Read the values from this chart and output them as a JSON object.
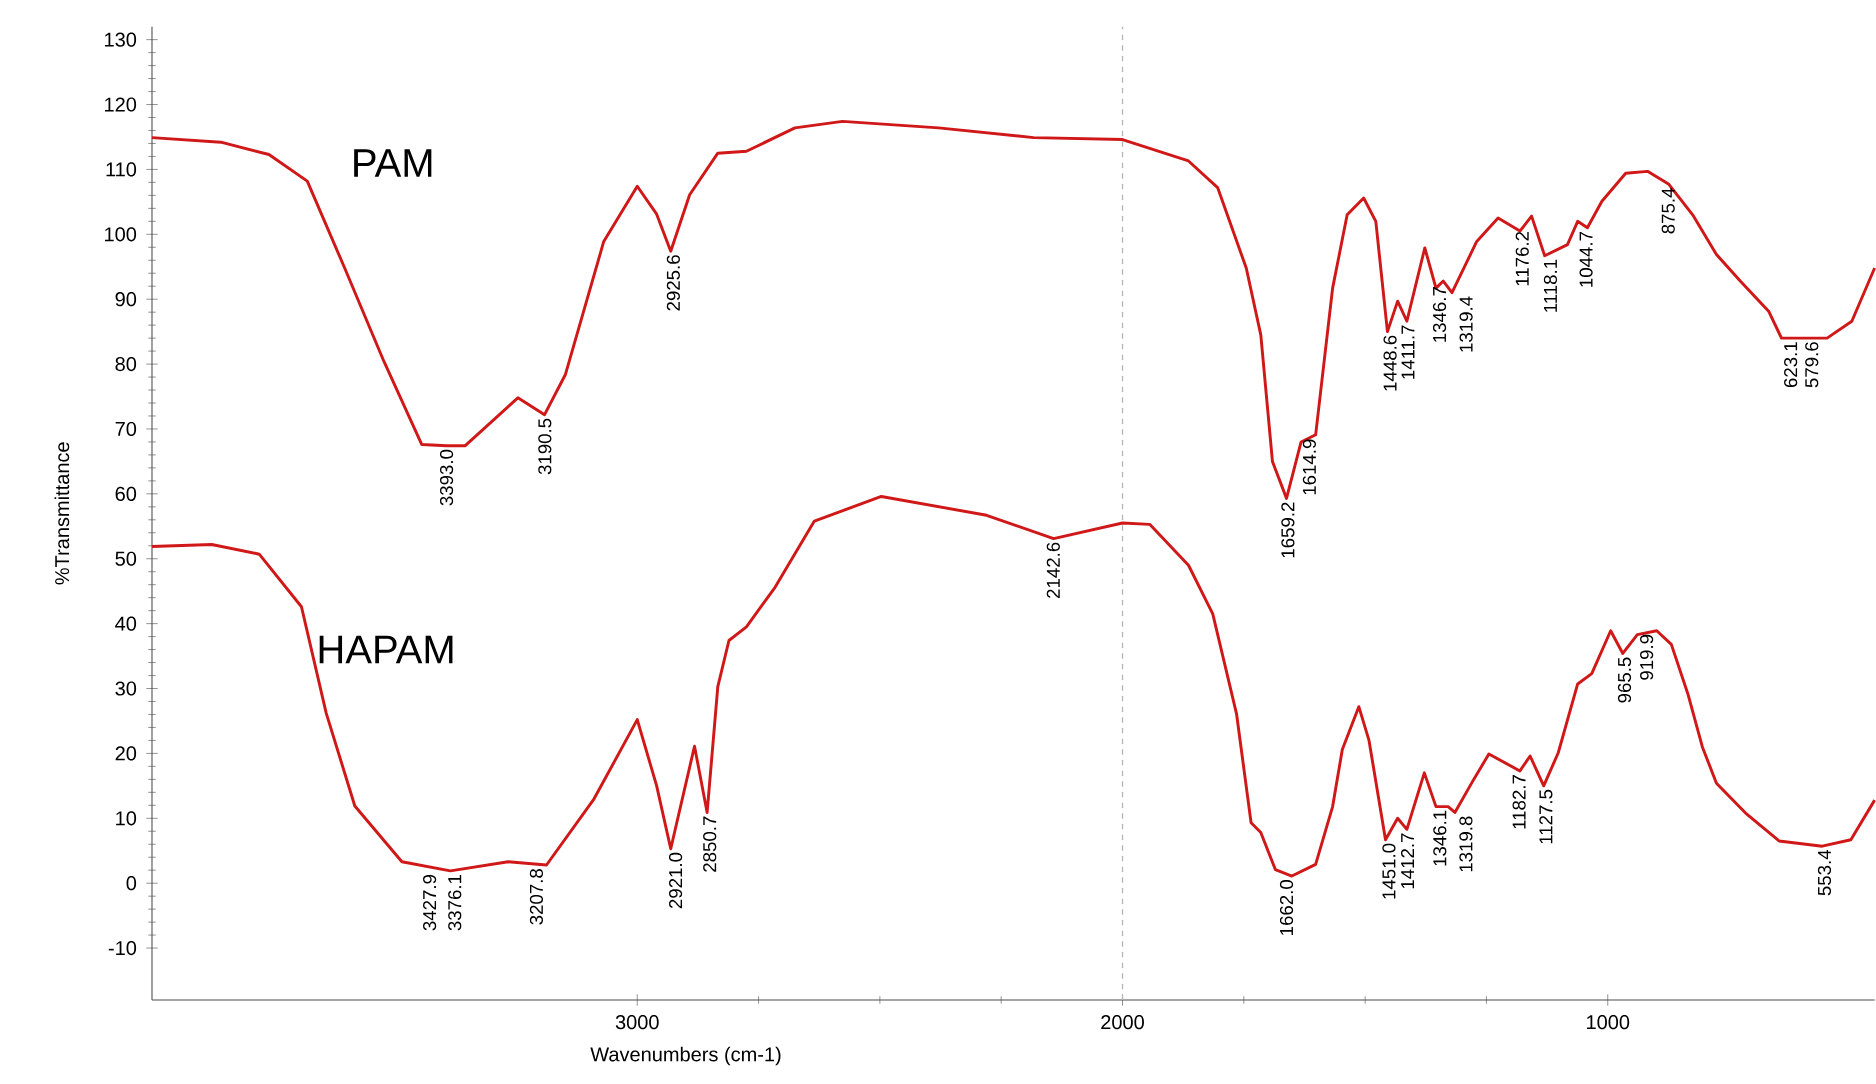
{
  "chart_data": {
    "type": "line",
    "xlabel": "Wavenumbers (cm-1)",
    "ylabel": "%Transmittance",
    "xlim": [
      4000,
      450
    ],
    "ylim": [
      -18,
      132
    ],
    "xticks": [
      3000,
      2000,
      1000
    ],
    "yticks": [
      -10,
      0,
      10,
      20,
      30,
      40,
      50,
      60,
      70,
      80,
      90,
      100,
      110,
      120,
      130
    ],
    "series": [
      {
        "name": "PAM",
        "color": "#d01818",
        "x": [
          4000,
          3858,
          3759,
          3680,
          3603,
          3522,
          3444,
          3393,
          3355,
          3246,
          3191,
          3148,
          3069,
          3000,
          2960,
          2931,
          2892,
          2834,
          2775,
          2675,
          2577,
          2379,
          2183,
          2000,
          1864,
          1804,
          1745,
          1715,
          1691,
          1662,
          1632,
          1602,
          1567,
          1537,
          1503,
          1478,
          1454,
          1433,
          1414,
          1377,
          1354,
          1339,
          1321,
          1270,
          1226,
          1181,
          1157,
          1130,
          1083,
          1062,
          1042,
          1012,
          963,
          918,
          874,
          825,
          776,
          727,
          668,
          642,
          548,
          497,
          450
        ],
        "values": [
          114.9,
          114.2,
          112.3,
          108.2,
          94.8,
          80.4,
          67.6,
          67.4,
          67.4,
          74.8,
          72.2,
          78.4,
          98.9,
          107.4,
          103.1,
          97.4,
          106.1,
          112.5,
          112.8,
          116.4,
          117.4,
          116.4,
          114.9,
          114.6,
          111.3,
          107.2,
          94.8,
          84.5,
          65,
          59.3,
          68,
          69.1,
          91.7,
          103,
          105.6,
          102,
          85,
          89.7,
          86.6,
          97.9,
          91.7,
          92.8,
          91,
          98.9,
          102.5,
          100.5,
          102.8,
          96.7,
          98.4,
          102,
          101,
          105.1,
          109.4,
          109.7,
          107.7,
          103,
          96.9,
          92.8,
          88.1,
          84,
          84,
          86.6,
          94.8
        ]
      },
      {
        "name": "HAPAM",
        "color": "#d01818",
        "x": [
          4000,
          3877,
          3779,
          3692,
          3641,
          3582,
          3485,
          3385,
          3266,
          3187,
          3089,
          3000,
          2960,
          2931,
          2882,
          2856,
          2834,
          2811,
          2775,
          2716,
          2635,
          2497,
          2280,
          2142,
          2000,
          1944,
          1864,
          1814,
          1765,
          1735,
          1715,
          1685,
          1651,
          1602,
          1567,
          1547,
          1513,
          1492,
          1458,
          1433,
          1414,
          1378,
          1354,
          1329,
          1315,
          1280,
          1245,
          1181,
          1160,
          1132,
          1102,
          1062,
          1033,
          994,
          969,
          939,
          899,
          869,
          835,
          805,
          776,
          716,
          647,
          558,
          499,
          450
        ],
        "values": [
          51.9,
          52.2,
          50.7,
          42.6,
          26.2,
          11.9,
          3.3,
          1.9,
          3.3,
          2.8,
          13,
          25.2,
          15,
          5.3,
          21.1,
          10.9,
          30.3,
          37.4,
          39.5,
          45.6,
          55.8,
          59.6,
          56.7,
          53.1,
          55.5,
          55.3,
          49,
          41.5,
          26.1,
          9.3,
          7.8,
          2.1,
          1.1,
          2.9,
          11.8,
          20.6,
          27.2,
          22,
          6.7,
          10,
          8.3,
          17,
          11.8,
          11.8,
          10.9,
          15.5,
          19.9,
          17.3,
          19.6,
          15,
          20.1,
          30.7,
          32.3,
          38.9,
          35.4,
          38.3,
          38.9,
          36.8,
          29.2,
          21,
          15.4,
          10.8,
          6.5,
          5.7,
          6.7,
          12.8
        ]
      }
    ],
    "ref_lines": [
      {
        "axis": "x",
        "value": 2000,
        "color": "#b4b4b4",
        "line_style": "dashed"
      }
    ],
    "annotations": [
      {
        "text": "3393.0",
        "x": 3393,
        "y": 67.4
      },
      {
        "text": "3190.5",
        "x": 3190.5,
        "y": 72.2
      },
      {
        "text": "2925.6",
        "x": 2925.6,
        "y": 97.4
      },
      {
        "text": "1659.2",
        "x": 1659.2,
        "y": 59.3
      },
      {
        "text": "1614.9",
        "x": 1614.9,
        "y": 69
      },
      {
        "text": "1448.6",
        "x": 1448.6,
        "y": 85
      },
      {
        "text": "1411.7",
        "x": 1411.7,
        "y": 86.6
      },
      {
        "text": "1346.7",
        "x": 1346.7,
        "y": 92.5
      },
      {
        "text": "1319.4",
        "x": 1319.4,
        "y": 91
      },
      {
        "text": "1176.2",
        "x": 1176.2,
        "y": 101
      },
      {
        "text": "1118.1",
        "x": 1118.1,
        "y": 96.7
      },
      {
        "text": "1044.7",
        "x": 1044.7,
        "y": 101
      },
      {
        "text": "875.4",
        "x": 875.4,
        "y": 107.7
      },
      {
        "text": "623.1",
        "x": 623.1,
        "y": 84
      },
      {
        "text": "579.6",
        "x": 579.6,
        "y": 84
      },
      {
        "text": "3427.9",
        "x": 3427.9,
        "y": 1.9
      },
      {
        "text": "3376.1",
        "x": 3376.1,
        "y": 1.9
      },
      {
        "text": "3207.8",
        "x": 3207.8,
        "y": 2.8
      },
      {
        "text": "2921.0",
        "x": 2921,
        "y": 5.3
      },
      {
        "text": "2850.7",
        "x": 2850.7,
        "y": 10.9
      },
      {
        "text": "2142.6",
        "x": 2142.6,
        "y": 53.1
      },
      {
        "text": "1662.0",
        "x": 1662,
        "y": 1.1
      },
      {
        "text": "1451.0",
        "x": 1451,
        "y": 6.7
      },
      {
        "text": "1412.7",
        "x": 1412.7,
        "y": 8.3
      },
      {
        "text": "1346.1",
        "x": 1346.1,
        "y": 11.8
      },
      {
        "text": "1319.8",
        "x": 1319.8,
        "y": 10.9
      },
      {
        "text": "1182.7",
        "x": 1182.7,
        "y": 17.3
      },
      {
        "text": "1127.5",
        "x": 1127.5,
        "y": 15
      },
      {
        "text": "965.5",
        "x": 965.5,
        "y": 35.4
      },
      {
        "text": "919.9",
        "x": 919.9,
        "y": 38.9
      },
      {
        "text": "553.4",
        "x": 553.4,
        "y": 5.7
      }
    ]
  }
}
